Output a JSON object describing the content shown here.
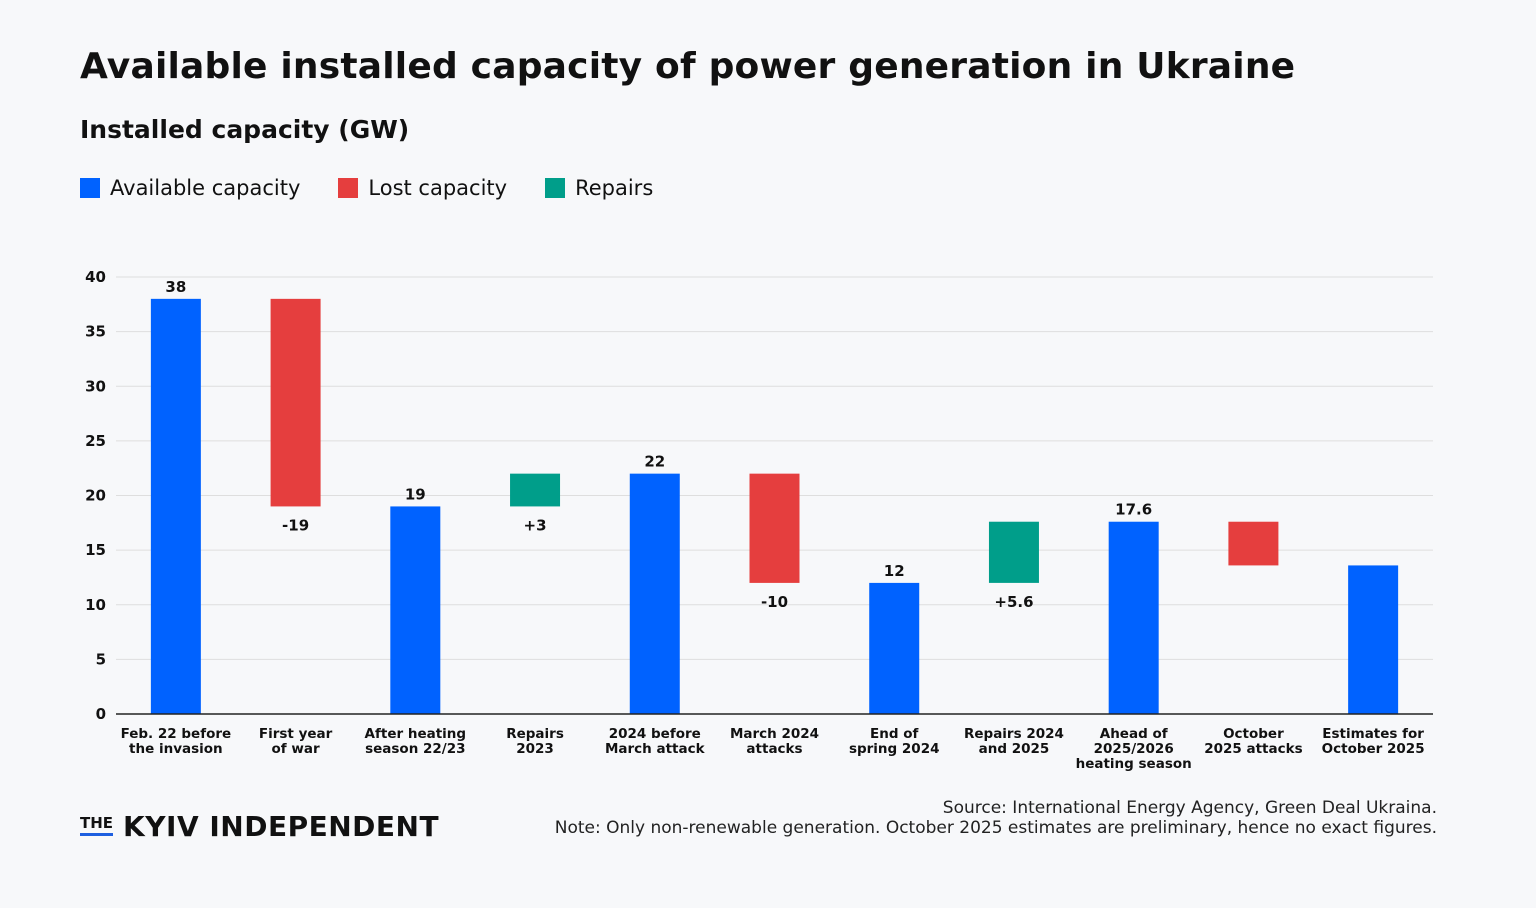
{
  "header": {
    "title": "Available installed capacity of power generation in Ukraine",
    "subtitle": "Installed capacity (GW)"
  },
  "legend": [
    {
      "label": "Available capacity",
      "color": "#0062ff"
    },
    {
      "label": "Lost capacity",
      "color": "#e53e3e"
    },
    {
      "label": "Repairs",
      "color": "#009e8a"
    }
  ],
  "colors": {
    "available": "#0062ff",
    "lost": "#e53e3e",
    "repairs": "#009e8a",
    "grid": "#dedede",
    "axis": "#222222"
  },
  "chart_data": {
    "type": "bar",
    "subtype": "waterfall",
    "ylim": [
      0,
      40
    ],
    "yticks": [
      0,
      5,
      10,
      15,
      20,
      25,
      30,
      35,
      40
    ],
    "grid": true,
    "legend_position": "top-left",
    "bars": [
      {
        "category": [
          "Feb. 22 before",
          "the invasion"
        ],
        "kind": "available",
        "start": 0,
        "end": 38,
        "label": "38",
        "label_pos": "top"
      },
      {
        "category": [
          "First year",
          "of war"
        ],
        "kind": "lost",
        "start": 19,
        "end": 38,
        "label": "-19",
        "label_pos": "bottom"
      },
      {
        "category": [
          "After heating",
          "season 22/23"
        ],
        "kind": "available",
        "start": 0,
        "end": 19,
        "label": "19",
        "label_pos": "top"
      },
      {
        "category": [
          "Repairs",
          "2023"
        ],
        "kind": "repairs",
        "start": 19,
        "end": 22,
        "label": "+3",
        "label_pos": "bottom"
      },
      {
        "category": [
          "2024 before",
          "March attack"
        ],
        "kind": "available",
        "start": 0,
        "end": 22,
        "label": "22",
        "label_pos": "top"
      },
      {
        "category": [
          "March 2024",
          "attacks"
        ],
        "kind": "lost",
        "start": 12,
        "end": 22,
        "label": "-10",
        "label_pos": "bottom"
      },
      {
        "category": [
          "End of",
          "spring 2024"
        ],
        "kind": "available",
        "start": 0,
        "end": 12,
        "label": "12",
        "label_pos": "top"
      },
      {
        "category": [
          "Repairs 2024",
          "and 2025"
        ],
        "kind": "repairs",
        "start": 12,
        "end": 17.6,
        "label": "+5.6",
        "label_pos": "bottom"
      },
      {
        "category": [
          "Ahead of",
          "2025/2026",
          "heating season"
        ],
        "kind": "available",
        "start": 0,
        "end": 17.6,
        "label": "17.6",
        "label_pos": "top"
      },
      {
        "category": [
          "October",
          "2025 attacks"
        ],
        "kind": "lost",
        "start": 13.6,
        "end": 17.6,
        "label": "",
        "label_pos": "none"
      },
      {
        "category": [
          "Estimates for",
          "October 2025"
        ],
        "kind": "available",
        "start": 0,
        "end": 13.6,
        "label": "",
        "label_pos": "none"
      }
    ]
  },
  "footer": {
    "logo_the": "THE",
    "logo_main": "KYIV INDEPENDENT",
    "source": "Source: International Energy Agency, Green Deal Ukraina.",
    "note": "Note: Only non-renewable generation. October 2025 estimates are preliminary, hence no exact figures."
  }
}
